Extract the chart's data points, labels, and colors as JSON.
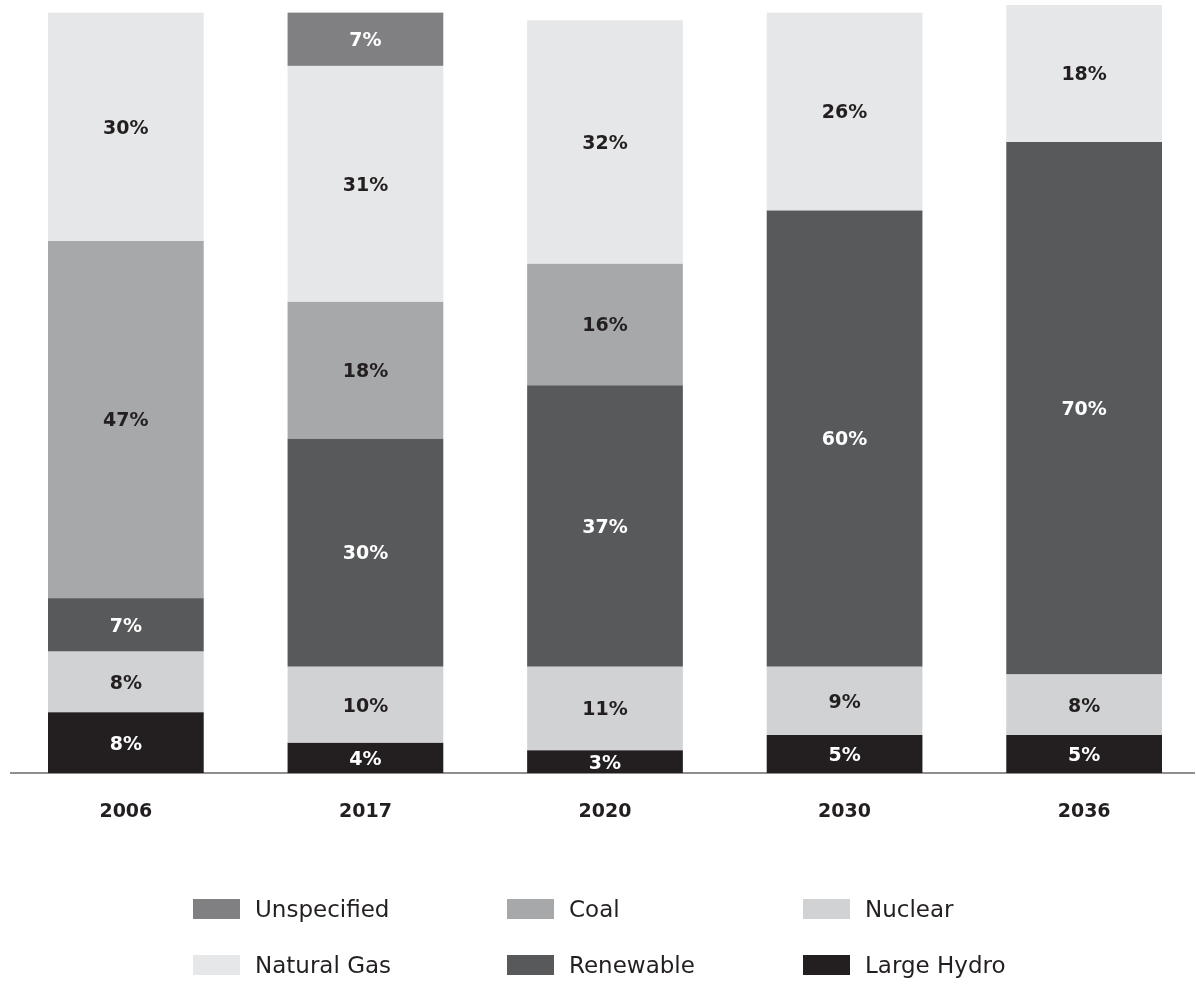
{
  "chart_data": {
    "type": "bar",
    "stacked": true,
    "categories": [
      "2006",
      "2017",
      "2020",
      "2030",
      "2036"
    ],
    "series": [
      {
        "name": "Large Hydro",
        "color": "#231f20",
        "values": [
          8,
          4,
          3,
          5,
          5
        ],
        "value_labels": [
          "8%",
          "4%",
          "3%",
          "5%",
          "5%"
        ]
      },
      {
        "name": "Nuclear",
        "color": "#d1d2d4",
        "values": [
          8,
          10,
          11,
          9,
          8
        ],
        "value_labels": [
          "8%",
          "10%",
          "11%",
          "9%",
          "8%"
        ]
      },
      {
        "name": "Renewable",
        "color": "#58595b",
        "values": [
          7,
          30,
          37,
          60,
          70
        ],
        "value_labels": [
          "7%",
          "30%",
          "37%",
          "60%",
          "70%"
        ]
      },
      {
        "name": "Coal",
        "color": "#a7a8aa",
        "values": [
          47,
          18,
          16,
          null,
          null
        ],
        "value_labels": [
          "47%",
          "18%",
          "16%",
          null,
          null
        ]
      },
      {
        "name": "Natural Gas",
        "color": "#e6e7e8",
        "values": [
          30,
          31,
          32,
          26,
          18
        ],
        "value_labels": [
          "30%",
          "31%",
          "32%",
          "26%",
          "18%"
        ]
      },
      {
        "name": "Unspecified",
        "color": "#808083",
        "values": [
          null,
          7,
          null,
          null,
          null
        ],
        "value_labels": [
          null,
          "7%",
          null,
          null,
          null
        ]
      }
    ],
    "legend": "bottom"
  }
}
